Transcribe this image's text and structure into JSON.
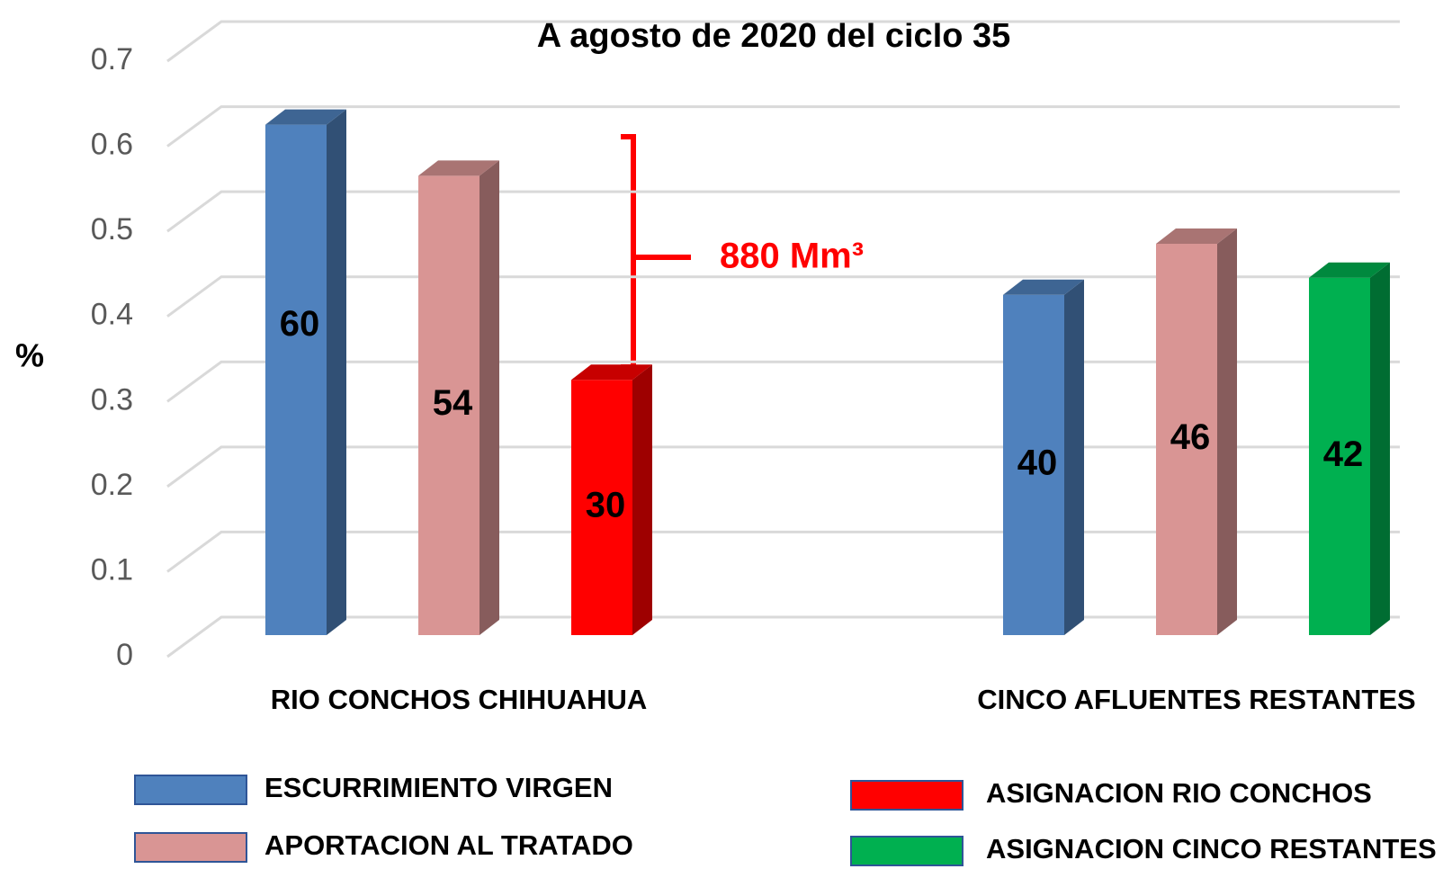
{
  "chart_data": {
    "type": "bar3d",
    "title": "A agosto de 2020 del ciclo 35",
    "y_label": "%",
    "annotation": "880 Mm³",
    "categories": [
      "RIO CONCHOS CHIHUAHUA",
      "CINCO AFLUENTES RESTANTES"
    ],
    "series": [
      {
        "name": "ESCURRIMIENTO VIRGEN",
        "color": "#4f81bd",
        "values": [
          0.6,
          0.4
        ],
        "value_labels": [
          "60",
          "40"
        ]
      },
      {
        "name": "APORTACION AL TRATADO",
        "color": "#d99594",
        "values": [
          0.54,
          0.46
        ],
        "value_labels": [
          "54",
          "46"
        ]
      },
      {
        "name": "ASIGNACION RIO CONCHOS",
        "color": "#ff0000",
        "values": [
          0.3,
          null
        ],
        "value_labels": [
          "30",
          null
        ]
      },
      {
        "name": "ASIGNACION CINCO RESTANTES",
        "color": "#00b050",
        "values": [
          null,
          0.42
        ],
        "value_labels": [
          null,
          "42"
        ]
      }
    ],
    "ylim": [
      0,
      0.7
    ],
    "yticks": [
      0,
      0.1,
      0.2,
      0.3,
      0.4,
      0.5,
      0.6,
      0.7
    ],
    "grid": true,
    "legend": "bottom"
  }
}
